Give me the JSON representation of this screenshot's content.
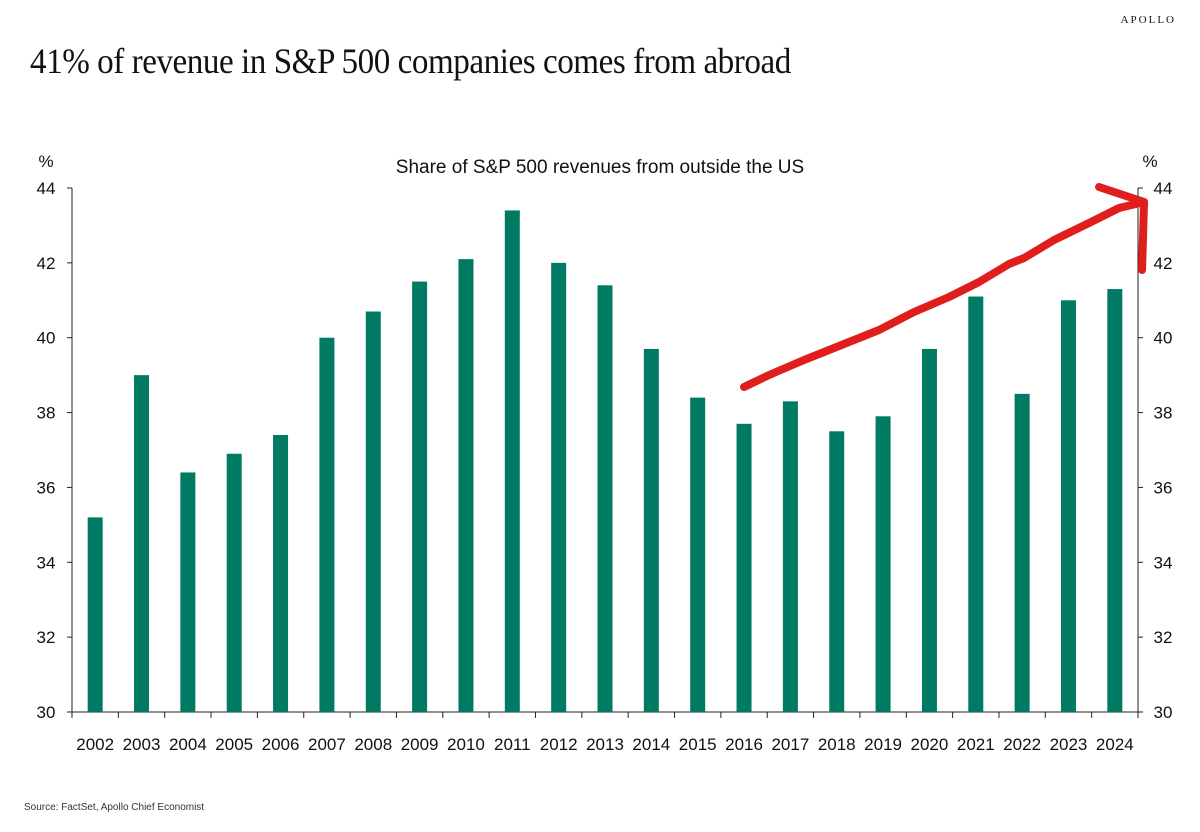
{
  "header": {
    "brand": "APOLLO",
    "headline": "41% of revenue in S&P 500 companies comes from abroad"
  },
  "footer": {
    "source": "Source: FactSet, Apollo Chief Economist"
  },
  "colors": {
    "bar": "#007a62",
    "annotation_arrow": "#e01e1e",
    "axis": "#222222"
  },
  "chart_data": {
    "type": "bar",
    "title": "Share of S&P 500 revenues from outside the US",
    "ylabel_left": "%",
    "ylabel_right": "%",
    "xlabel": "",
    "ylim": [
      30,
      44
    ],
    "yticks": [
      30,
      32,
      34,
      36,
      38,
      40,
      42,
      44
    ],
    "categories": [
      "2002",
      "2003",
      "2004",
      "2005",
      "2006",
      "2007",
      "2008",
      "2009",
      "2010",
      "2011",
      "2012",
      "2013",
      "2014",
      "2015",
      "2016",
      "2017",
      "2018",
      "2019",
      "2020",
      "2021",
      "2022",
      "2023",
      "2024"
    ],
    "values": [
      35.2,
      39.0,
      36.4,
      36.9,
      37.4,
      40.0,
      40.7,
      41.5,
      42.1,
      43.4,
      42.0,
      41.4,
      39.7,
      38.4,
      37.7,
      38.3,
      37.5,
      37.9,
      39.7,
      41.1,
      38.5,
      41.0,
      41.3
    ],
    "grid": false,
    "legend": "none",
    "annotation": "hand-drawn upward arrow from 2016 to 2024"
  }
}
